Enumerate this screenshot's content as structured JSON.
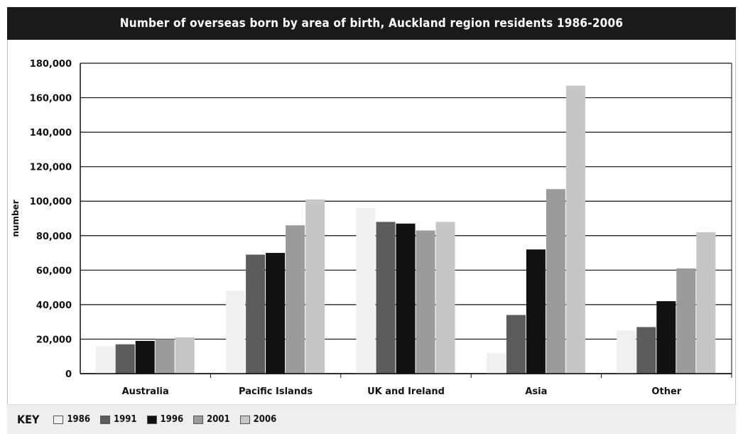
{
  "chart_data": {
    "type": "bar",
    "title": "Number of overseas born by area of birth, Auckland region residents 1986-2006",
    "ylabel": "number",
    "xlabel": "",
    "ylim": [
      0,
      180000
    ],
    "yticks": [
      "0",
      "20,000",
      "40,000",
      "60,000",
      "80,000",
      "100,000",
      "120,000",
      "140,000",
      "160,000",
      "180,000"
    ],
    "grid": true,
    "categories": [
      "Australia",
      "Pacific Islands",
      "UK and Ireland",
      "Asia",
      "Other"
    ],
    "series": [
      {
        "name": "1986",
        "color": "#f0f0f0",
        "values": [
          16000,
          48000,
          96000,
          12000,
          25000
        ]
      },
      {
        "name": "1991",
        "color": "#5c5c5c",
        "values": [
          17000,
          69000,
          88000,
          34000,
          27000
        ]
      },
      {
        "name": "1996",
        "color": "#111111",
        "values": [
          19000,
          70000,
          87000,
          72000,
          42000
        ]
      },
      {
        "name": "2001",
        "color": "#9b9b9b",
        "values": [
          20000,
          86000,
          83000,
          107000,
          61000
        ]
      },
      {
        "name": "2006",
        "color": "#c6c6c6",
        "values": [
          21000,
          101000,
          88000,
          167000,
          82000
        ]
      }
    ]
  },
  "key": {
    "label": "KEY"
  }
}
